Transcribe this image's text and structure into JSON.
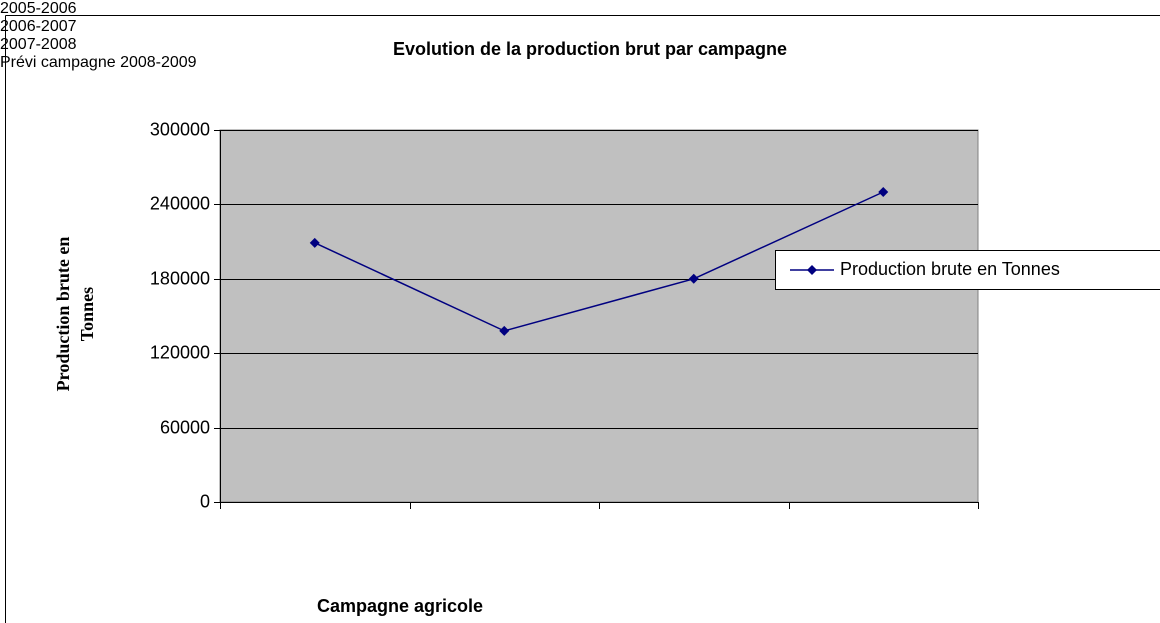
{
  "chart_data": {
    "type": "line",
    "title": "Evolution de la production brut par campagne",
    "x_label": "Campagne agricole",
    "y_label": "Production brute en Tonnes",
    "categories": [
      "2005-2006",
      "2006-2007",
      "2007-2008",
      "Prévi campagne 2008-2009"
    ],
    "series": [
      {
        "name": "Production brute en Tonnes",
        "color": "#000080",
        "values": [
          209000,
          138000,
          180000,
          250000
        ]
      }
    ],
    "ylim": [
      0,
      300000
    ],
    "yticks": [
      0,
      60000,
      120000,
      180000,
      240000,
      300000
    ],
    "grid": true,
    "plot_background": "#c0c0c0",
    "legend": "right"
  }
}
